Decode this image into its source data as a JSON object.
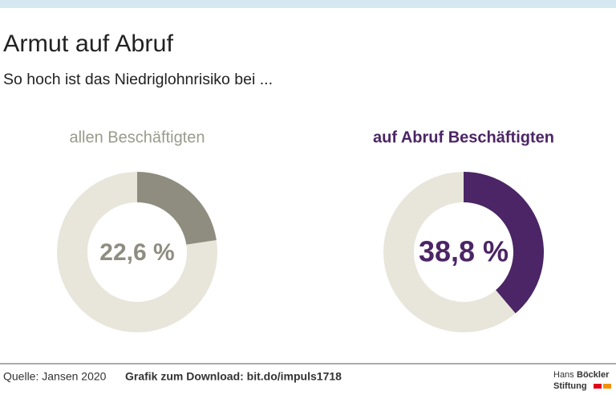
{
  "header": {
    "title": "Armut auf Abruf",
    "subtitle": "So hoch ist das Niedriglohnrisiko bei ..."
  },
  "chart_data": [
    {
      "type": "pie",
      "title": "allen  Beschäftigten",
      "values": [
        22.6
      ],
      "value_labels": [
        "22,6 %"
      ],
      "color": "#8f8d80",
      "rest_color": "#e8e6da",
      "title_color": "#9a9a8c",
      "label_color": "#8f8d80"
    },
    {
      "type": "pie",
      "title": "auf Abruf Beschäftigten",
      "values": [
        38.8
      ],
      "value_labels": [
        "38,8 %"
      ],
      "color": "#4b2565",
      "rest_color": "#e8e6da",
      "title_color": "#4b2565",
      "label_color": "#4b2565"
    }
  ],
  "footer": {
    "source": "Quelle: Jansen 2020",
    "download": "Grafik zum Download: bit.do/impuls1718"
  },
  "logo": {
    "word1": "Hans",
    "word2": "Böckler",
    "word3": "Stiftung"
  }
}
